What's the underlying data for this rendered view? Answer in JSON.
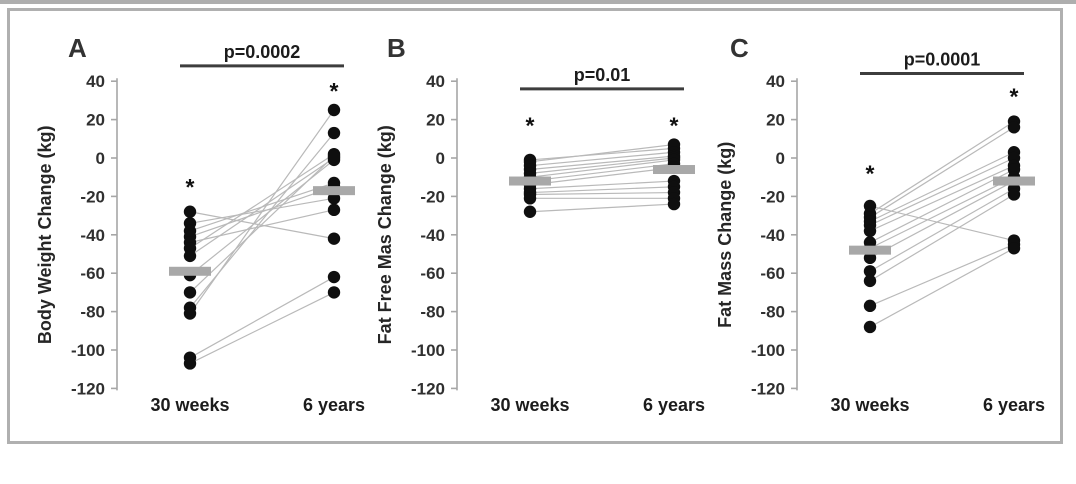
{
  "figure": {
    "colors": {
      "dot": "#0f0f0f",
      "pair_line": "#b9b9b9",
      "mean_bar": "#a8a8a8",
      "axis": "#a6a6a6",
      "bracket": "#3d3d3d",
      "frame_border": "#b0b0b0",
      "background": "#ffffff"
    }
  },
  "chart_data": [
    {
      "type": "scatter",
      "subtype": "paired-dot-plot",
      "panel_label": "A",
      "p_value": "p=0.0002",
      "ylabel": "Body Weight Change (kg)",
      "categories": [
        "30 weeks",
        "6 years"
      ],
      "ylim": [
        -120,
        40
      ],
      "yticks": [
        40,
        20,
        0,
        -20,
        -40,
        -60,
        -80,
        -100,
        -120
      ],
      "grid": false,
      "pairs": [
        [
          -28,
          -42
        ],
        [
          -34,
          -21
        ],
        [
          -38,
          -13
        ],
        [
          -41,
          -15
        ],
        [
          -44,
          -27
        ],
        [
          -47,
          2
        ],
        [
          -51,
          0
        ],
        [
          -61,
          -1
        ],
        [
          -70,
          1
        ],
        [
          -78,
          13
        ],
        [
          -81,
          25
        ],
        [
          -104,
          -62
        ],
        [
          -107,
          -70
        ]
      ],
      "means": [
        -59,
        -17
      ],
      "asterisks": [
        -15,
        35
      ],
      "bracket_y": 48
    },
    {
      "type": "scatter",
      "subtype": "paired-dot-plot",
      "panel_label": "B",
      "p_value": "p=0.01",
      "ylabel": "Fat Free Mas  Change (kg)",
      "categories": [
        "30 weeks",
        "6 years"
      ],
      "ylim": [
        -120,
        40
      ],
      "yticks": [
        40,
        20,
        0,
        -20,
        -40,
        -60,
        -80,
        -100,
        -120
      ],
      "grid": false,
      "pairs": [
        [
          -1,
          5
        ],
        [
          -2,
          7
        ],
        [
          -4,
          3
        ],
        [
          -6,
          1
        ],
        [
          -8,
          0
        ],
        [
          -10,
          -1
        ],
        [
          -12,
          -3
        ],
        [
          -14,
          -5
        ],
        [
          -16,
          -12
        ],
        [
          -18,
          -15
        ],
        [
          -19,
          -18
        ],
        [
          -21,
          -21
        ],
        [
          -28,
          -24
        ]
      ],
      "means": [
        -12,
        -6
      ],
      "asterisks": [
        17,
        17
      ],
      "bracket_y": 36
    },
    {
      "type": "scatter",
      "subtype": "paired-dot-plot",
      "panel_label": "C",
      "p_value": "p=0.0001",
      "ylabel": "Fat Mass Change (kg)",
      "categories": [
        "30 weeks",
        "6 years"
      ],
      "ylim": [
        -120,
        40
      ],
      "yticks": [
        40,
        20,
        0,
        -20,
        -40,
        -60,
        -80,
        -100,
        -120
      ],
      "grid": false,
      "pairs": [
        [
          -25,
          -43
        ],
        [
          -29,
          19
        ],
        [
          -31,
          16
        ],
        [
          -33,
          3
        ],
        [
          -35,
          0
        ],
        [
          -38,
          -4
        ],
        [
          -44,
          -6
        ],
        [
          -47,
          -10
        ],
        [
          -52,
          -12
        ],
        [
          -59,
          -16
        ],
        [
          -64,
          -19
        ],
        [
          -77,
          -45
        ],
        [
          -88,
          -47
        ]
      ],
      "means": [
        -48,
        -12
      ],
      "asterisks": [
        -8,
        32
      ],
      "bracket_y": 44
    }
  ]
}
